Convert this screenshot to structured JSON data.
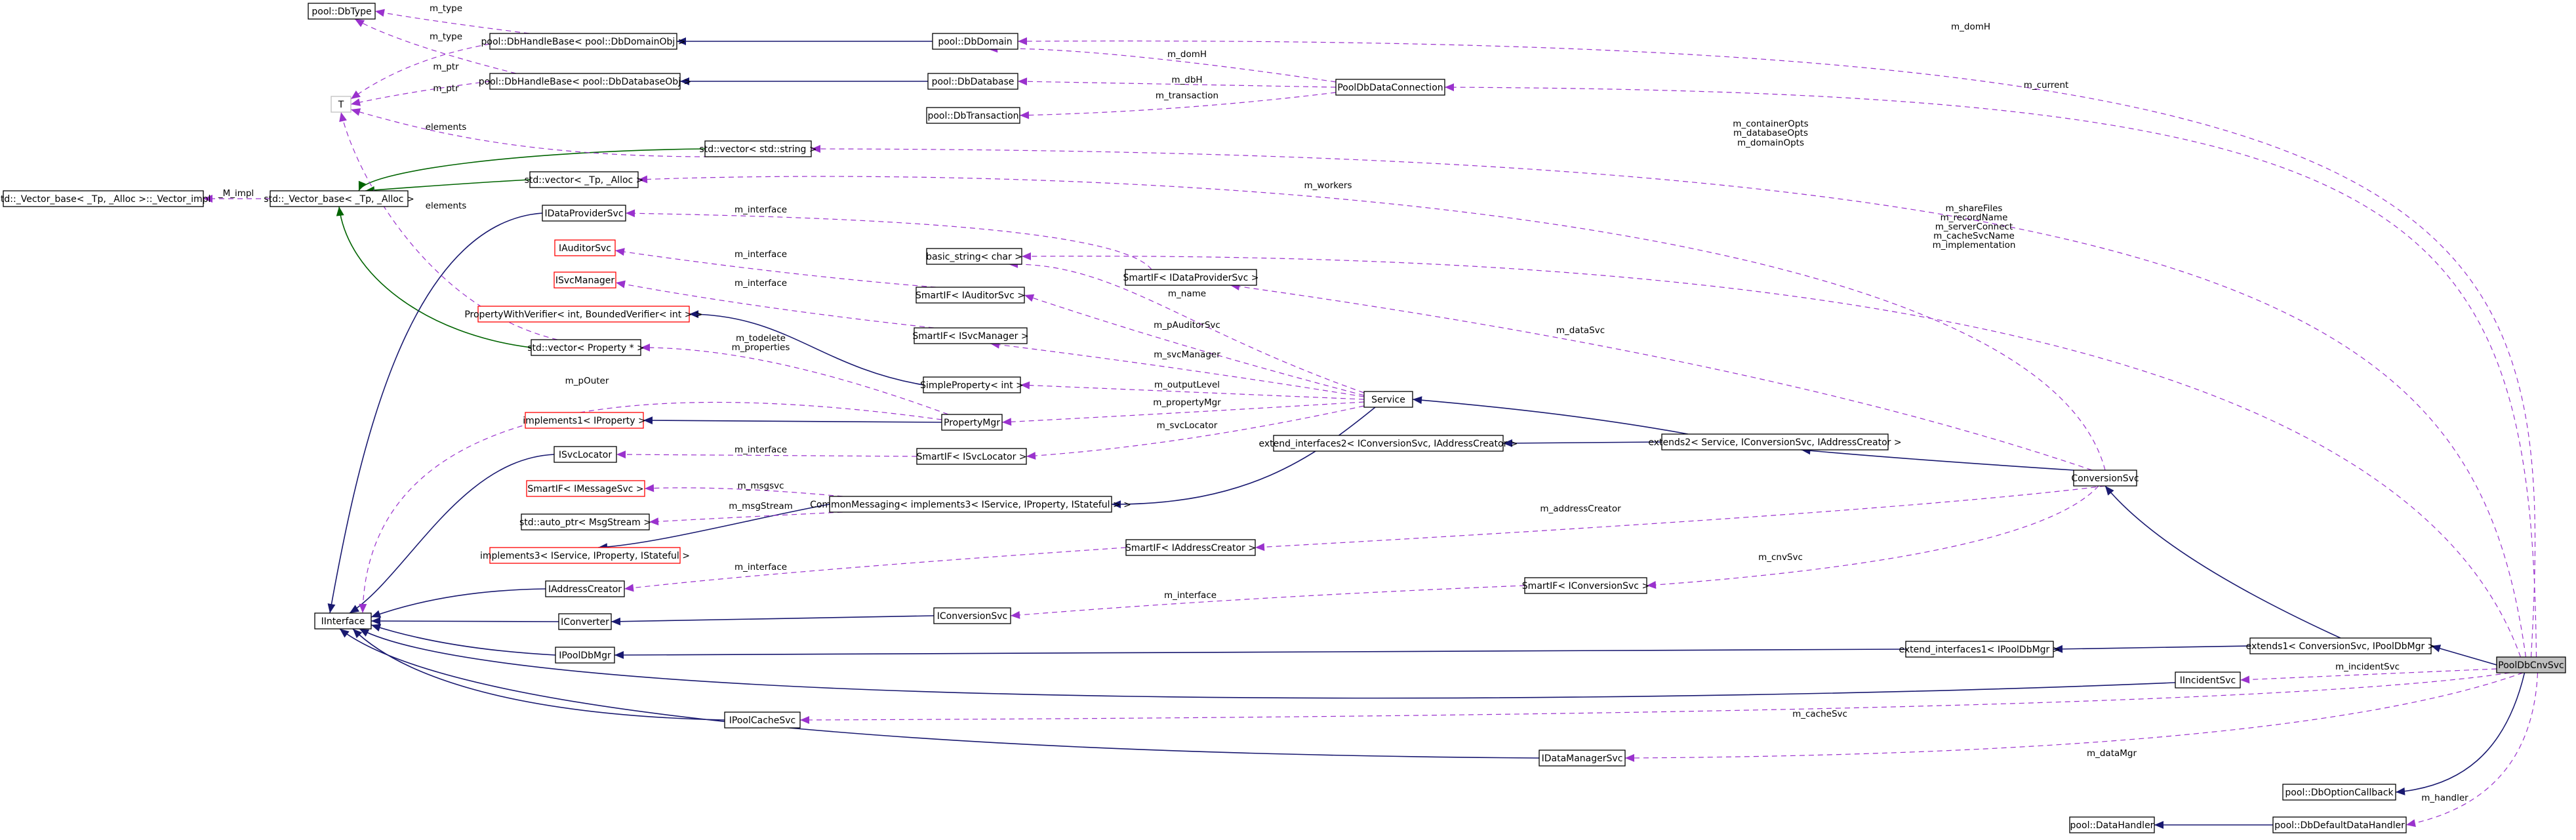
{
  "nodes": {
    "dbtype": "pool::DbType",
    "dbhandle_domain": "pool::DbHandleBase< pool::DbDomainObj >",
    "dbhandle_database": "pool::DbHandleBase< pool::DbDatabaseObj >",
    "t": "T",
    "vector_base_impl": "std::_Vector_base< _Tp, _Alloc >::_Vector_impl",
    "vector_base": "std::_Vector_base< _Tp, _Alloc >",
    "dbdomain": "pool::DbDomain",
    "dbdatabase": "pool::DbDatabase",
    "dbtransaction": "pool::DbTransaction",
    "pooldbdataconnection": "PoolDbDataConnection",
    "vector_string": "std::vector< std::string >",
    "vector_tp": "std::vector< _Tp, _Alloc >",
    "idataprovidersvc": "IDataProviderSvc",
    "iauditorsvc": "IAuditorSvc",
    "isvcmanager": "ISvcManager",
    "propertywithverifier": "PropertyWithVerifier< int, BoundedVerifier< int > >",
    "vector_property": "std::vector< Property * >",
    "implements1_iproperty": "implements1< IProperty >",
    "isvclocator": "ISvcLocator",
    "smartif_imessagesvc": "SmartIF< IMessageSvc >",
    "auto_ptr_msgstream": "std::auto_ptr< MsgStream >",
    "implements3": "implements3< IService, IProperty, IStateful >",
    "iaddresscreator": "IAddressCreator",
    "iinterface": "IInterface",
    "iconverter": "IConverter",
    "ipooldbmgr": "IPoolDbMgr",
    "ipoolcachesvc": "IPoolCacheSvc",
    "basic_string_char": "basic_string< char >",
    "smartif_iauditorsvc": "SmartIF< IAuditorSvc >",
    "smartif_isvcmanager": "SmartIF< ISvcManager >",
    "smartif_idataprovidersvc": "SmartIF< IDataProviderSvc >",
    "simpleproperty_int": "SimpleProperty< int >",
    "propertymgr": "PropertyMgr",
    "smartif_isvclocator": "SmartIF< ISvcLocator >",
    "commonmessaging": "CommonMessaging< implements3< IService, IProperty, IStateful > >",
    "smartif_iaddresscreator": "SmartIF< IAddressCreator >",
    "iconversionsvc": "IConversionSvc",
    "service": "Service",
    "extend_interfaces2": "extend_interfaces2< IConversionSvc, IAddressCreator >",
    "extends2": "extends2< Service, IConversionSvc, IAddressCreator >",
    "smartif_iconversionsvc": "SmartIF< IConversionSvc >",
    "conversionsvc": "ConversionSvc",
    "extend_interfaces1": "extend_interfaces1< IPoolDbMgr >",
    "extends1": "extends1< ConversionSvc, IPoolDbMgr >",
    "idatamanagersvc": "IDataManagerSvc",
    "iincidentsvc": "IIncidentSvc",
    "pooldbcnvsvc": "PoolDbCnvSvc",
    "dboptioncallback": "pool::DbOptionCallback",
    "datahandler": "pool::DataHandler",
    "dbdefaultdatahandler": "pool::DbDefaultDataHandler"
  },
  "edge_labels": {
    "m_type_1": "m_type",
    "m_type_2": "m_type",
    "m_ptr_1": "m_ptr",
    "m_ptr_2": "m_ptr",
    "elements_1": "elements",
    "elements_2": "elements",
    "m_impl": "_M_impl",
    "m_domh_1": "m_domH",
    "m_domh_2": "m_domH",
    "m_dbh": "m_dbH",
    "m_transaction": "m_transaction",
    "m_current": "m_current",
    "m_container_opts": "m_containerOpts",
    "m_database_opts": "m_databaseOpts",
    "m_domain_opts": "m_domainOpts",
    "m_workers": "m_workers",
    "m_interface_1": "m_interface",
    "m_interface_2": "m_interface",
    "m_interface_3": "m_interface",
    "m_interface_4": "m_interface",
    "m_interface_5": "m_interface",
    "m_interface_6": "m_interface",
    "m_share_files": "m_shareFiles",
    "m_record_name": "m_recordName",
    "m_server_connect": "m_serverConnect",
    "m_cache_svc_name": "m_cacheSvcName",
    "m_implementation": "m_implementation",
    "m_name": "m_name",
    "m_paud_svc": "m_pAuditorSvc",
    "m_svc_manager": "m_svcManager",
    "m_data_svc": "m_dataSvc",
    "m_todelete": "m_todelete",
    "m_properties": "m_properties",
    "m_pouter": "m_pOuter",
    "m_output_level": "m_outputLevel",
    "m_property_mgr": "m_propertyMgr",
    "m_svc_locator": "m_svcLocator",
    "m_msgsvc": "m_msgsvc",
    "m_msg_stream": "m_msgStream",
    "m_address_creator": "m_addressCreator",
    "m_cnv_svc": "m_cnvSvc",
    "m_incident_svc": "m_incidentSvc",
    "m_cache_svc": "m_cacheSvc",
    "m_data_mgr": "m_dataMgr",
    "m_handler": "m_handler"
  },
  "colors": {
    "uses": "#9a32cd",
    "inherits": "#191970",
    "inherits_template": "#006400",
    "template_instance": "#ffa0a0",
    "highlight_fill": "#bfbfbf"
  }
}
